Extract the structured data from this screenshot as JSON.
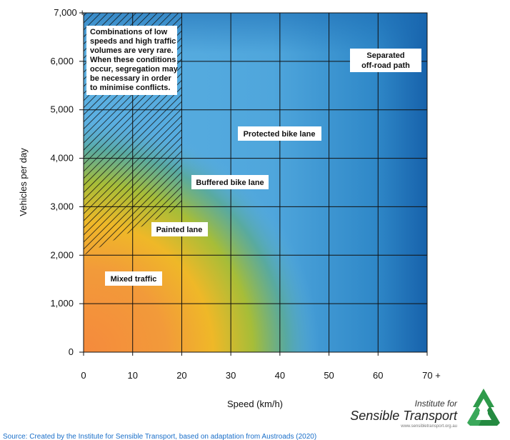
{
  "chart_data": {
    "type": "heatmap",
    "xlabel": "Speed (km/h)",
    "ylabel": "Vehicles per day",
    "xlim": [
      0,
      70
    ],
    "ylim": [
      0,
      7000
    ],
    "x_ticks": [
      0,
      10,
      20,
      30,
      40,
      50,
      60,
      70
    ],
    "x_tick_labels": [
      "0",
      "10",
      "20",
      "30",
      "40",
      "50",
      "60",
      "70 +"
    ],
    "y_ticks": [
      0,
      1000,
      2000,
      3000,
      4000,
      5000,
      6000,
      7000
    ],
    "y_tick_labels": [
      "0",
      "1,000",
      "2,000",
      "3,000",
      "4,000",
      "5,000",
      "6,000",
      "7,000 +"
    ],
    "grid": true,
    "hatched_region": {
      "polygon": [
        [
          0,
          2000
        ],
        [
          20,
          3000
        ],
        [
          20,
          7000
        ],
        [
          0,
          7000
        ]
      ],
      "note": "Combinations of low speeds and high traffic volumes are very rare. When these conditions occur, segregation may be necessary in order to minimise conflicts."
    },
    "zones": [
      {
        "label": "Mixed traffic",
        "x": 10,
        "y": 1500,
        "color": "#f39a3c"
      },
      {
        "label": "Painted lane",
        "x": 20,
        "y": 2570,
        "color": "#f0b828"
      },
      {
        "label": "Buffered bike lane",
        "x": 30,
        "y": 3500,
        "color": "#9fbe3a"
      },
      {
        "label": "Protected bike lane",
        "x": 42,
        "y": 4500,
        "color": "#5aade0"
      },
      {
        "label": "Separated\noff-road path",
        "x": 61,
        "y": 6150,
        "color": "#1a68b0"
      }
    ]
  },
  "note_lines": [
    "Combinations of low",
    "speeds and high traffic",
    "volumes are very rare.",
    "When these conditions",
    "occur, segregation may",
    "be necessary in order",
    "to minimise conflicts."
  ],
  "zone_labels": {
    "mixed": "Mixed traffic",
    "painted": "Painted lane",
    "buffered": "Buffered bike lane",
    "protected": "Protected bike lane",
    "separated_1": "Separated",
    "separated_2": "off-road path"
  },
  "logo": {
    "line1": "Institute for",
    "line2": "Sensible Transport",
    "line3": "www.sensibletransport.org.au"
  },
  "source": "Source: Created by the Institute for Sensible Transport, based on adaptation from Austroads (2020)"
}
